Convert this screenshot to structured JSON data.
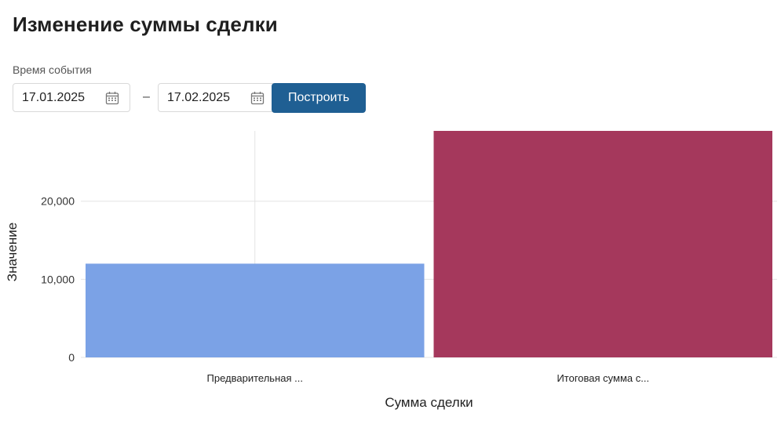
{
  "page": {
    "title": "Изменение суммы сделки"
  },
  "filter": {
    "label": "Время события",
    "date_from": "17.01.2025",
    "separator": "–",
    "date_to": "17.02.2025",
    "calendar_icon": "calendar-icon",
    "build_label": "Построить",
    "build_color": "#1f5f93"
  },
  "chart_data": {
    "type": "bar",
    "categories": [
      "Предварительная ...",
      "Итоговая сумма с..."
    ],
    "values": [
      12000,
      29000
    ],
    "colors": [
      "#7ba2e6",
      "#a5385c"
    ],
    "xlabel": "Сумма сделки",
    "ylabel": "Значение",
    "yticks": [
      0,
      10000,
      20000
    ],
    "ytick_labels": [
      "0",
      "10,000",
      "20,000"
    ],
    "ylim": [
      0,
      29000
    ],
    "grid": true
  }
}
